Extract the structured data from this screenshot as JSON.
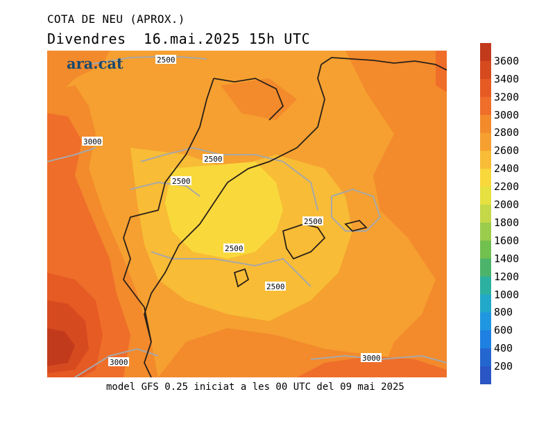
{
  "header": {
    "title": "COTA DE NEU (APROX.)",
    "subtitle": "Divendres  16.mai.2025 15h UTC"
  },
  "logo": "ara.cat",
  "footer": {
    "caption": "model GFS 0.25 iniciat a les 00 UTC del 09 mai 2025"
  },
  "colorbar": {
    "levels": [
      {
        "value": "3600",
        "color": "#c23a1c"
      },
      {
        "value": "3400",
        "color": "#d64a20"
      },
      {
        "value": "3200",
        "color": "#e65a24"
      },
      {
        "value": "3000",
        "color": "#ef6e2a"
      },
      {
        "value": "2800",
        "color": "#f38a2c"
      },
      {
        "value": "2600",
        "color": "#f5a030"
      },
      {
        "value": "2400",
        "color": "#f8bc36"
      },
      {
        "value": "2200",
        "color": "#f9d83c"
      },
      {
        "value": "2000",
        "color": "#e6e040"
      },
      {
        "value": "1800",
        "color": "#c4d848"
      },
      {
        "value": "1600",
        "color": "#9ccc4c"
      },
      {
        "value": "1400",
        "color": "#72c050"
      },
      {
        "value": "1200",
        "color": "#4cb46a"
      },
      {
        "value": "1000",
        "color": "#2cb0a0"
      },
      {
        "value": "800",
        "color": "#22a8c8"
      },
      {
        "value": "600",
        "color": "#2096e0"
      },
      {
        "value": "400",
        "color": "#1e80e0"
      },
      {
        "value": "200",
        "color": "#2466d0"
      }
    ],
    "bottom_color": "#2a55c4"
  },
  "contour_labels": [
    "2500",
    "3000",
    "2500",
    "2500",
    "2500",
    "2500",
    "2500",
    "3000",
    "3000"
  ]
}
